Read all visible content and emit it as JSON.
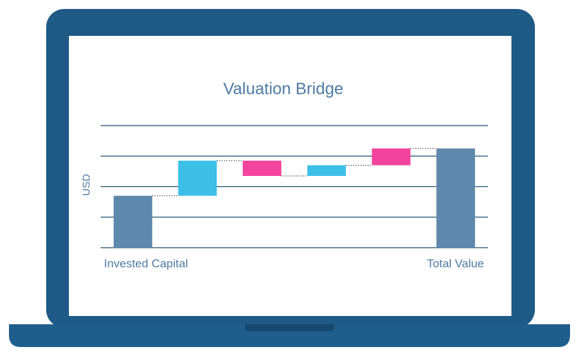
{
  "chart_data": {
    "type": "waterfall",
    "title": "Valuation Bridge",
    "y_label": "USD",
    "categories": [
      "Invested Capital",
      null,
      null,
      null,
      null,
      "Total Value"
    ],
    "values": [
      1.7,
      1.15,
      -0.5,
      0.35,
      0.55,
      3.25
    ],
    "is_total": [
      true,
      false,
      false,
      false,
      false,
      true
    ],
    "colors": [
      "#5f88ad",
      "#3dbfe8",
      "#f2449c",
      "#3dbfe8",
      "#f2449c",
      "#5f88ad"
    ],
    "ylim": [
      0,
      4
    ],
    "yticks": [
      0,
      1,
      2,
      3,
      4
    ],
    "grid": true,
    "connectors": true
  }
}
